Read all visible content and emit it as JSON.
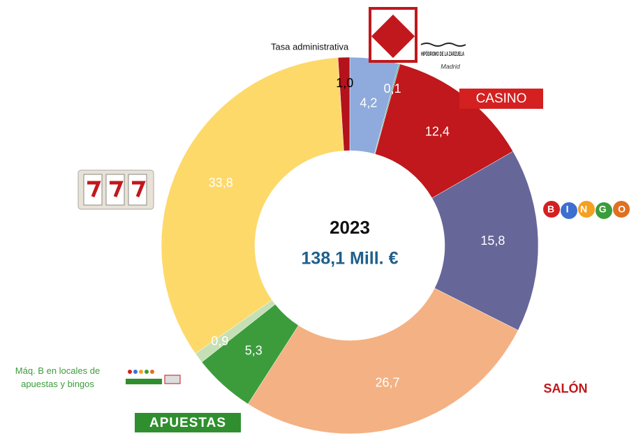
{
  "chart_data": {
    "type": "pie",
    "donut": true,
    "center_title": "2023",
    "center_subtitle": "138,1 Mill. €",
    "categories": [
      null,
      "HIPÓDROMO DE LA ZARZUELA",
      "CASINO",
      "BINGO",
      "SALÓN",
      "APUESTAS",
      "Máq. B en locales de apuestas y  bingos",
      null,
      "Tasa administrativa"
    ],
    "sublabel": "Madrid",
    "values": [
      4.2,
      0.1,
      12.4,
      15.8,
      26.7,
      5.3,
      0.9,
      33.8,
      1.0
    ],
    "value_labels": [
      "4,2",
      "0,1",
      "12,4",
      "15,8",
      "26,7",
      "5,3",
      "0,9",
      "33,8",
      "1,0"
    ],
    "colors": [
      "#8faadc",
      "#3aa57a",
      "#c0181c",
      "#666699",
      "#f4b183",
      "#3c9c3c",
      "#c5e0b4",
      "#fdd96a",
      "#b5121b"
    ],
    "label_colors": [
      "#ffffff",
      "#ffffff",
      "#ffffff",
      "#ffffff",
      "#ffffff",
      "#ffffff",
      "#ffffff",
      "#ffffff",
      "#000000"
    ]
  }
}
